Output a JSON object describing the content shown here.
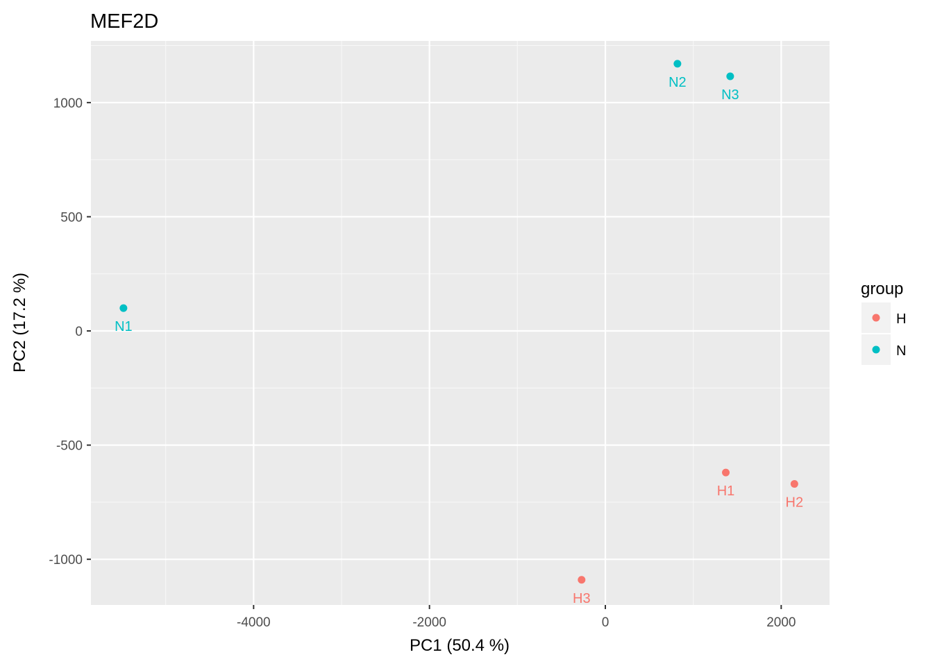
{
  "chart_data": {
    "type": "scatter",
    "title": "MEF2D",
    "xlabel": "PC1 (50.4 %)",
    "ylabel": "PC2 (17.2 %)",
    "xlim": [
      -5850,
      2550
    ],
    "ylim": [
      -1200,
      1270
    ],
    "x_ticks": [
      -4000,
      -2000,
      0,
      2000
    ],
    "x_tick_labels": [
      "-4000",
      "-2000",
      "0",
      "2000"
    ],
    "y_ticks": [
      -1000,
      -500,
      0,
      500,
      1000
    ],
    "y_tick_labels": [
      "-1000",
      "-500",
      "0",
      "500",
      "1000"
    ],
    "grid": true,
    "legend": {
      "title": "group",
      "position": "right",
      "entries": [
        {
          "label": "H",
          "color": "#F8766D"
        },
        {
          "label": "N",
          "color": "#00BFC4"
        }
      ]
    },
    "points": [
      {
        "label": "N1",
        "group": "N",
        "x": -5480,
        "y": 100
      },
      {
        "label": "N2",
        "group": "N",
        "x": 820,
        "y": 1170
      },
      {
        "label": "N3",
        "group": "N",
        "x": 1420,
        "y": 1115
      },
      {
        "label": "H1",
        "group": "H",
        "x": 1370,
        "y": -620
      },
      {
        "label": "H2",
        "group": "H",
        "x": 2150,
        "y": -670
      },
      {
        "label": "H3",
        "group": "H",
        "x": -270,
        "y": -1090
      }
    ]
  }
}
